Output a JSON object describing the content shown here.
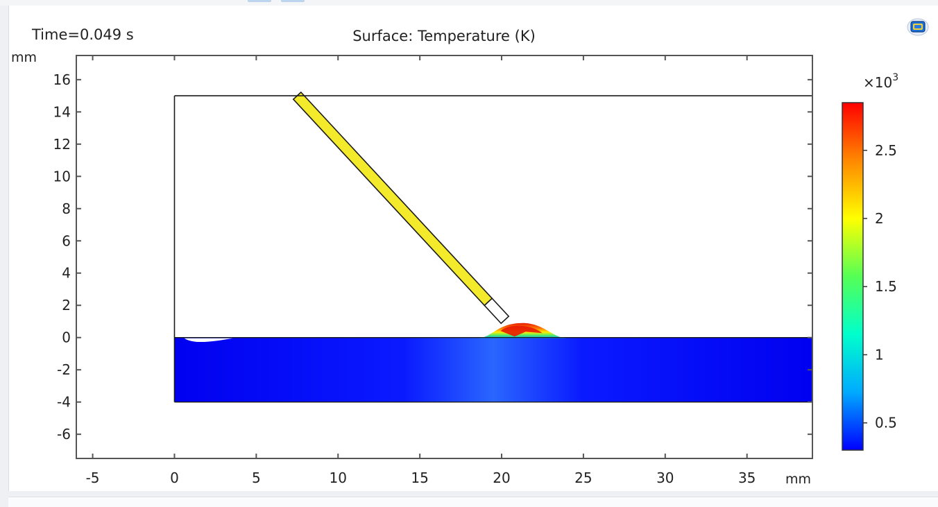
{
  "chart_data": {
    "type": "heatmap",
    "title": "Surface: Temperature (K)",
    "time_label": "Time=0.049 s",
    "x_unit": "mm",
    "y_unit": "mm",
    "xlim": [
      -6,
      39
    ],
    "ylim": [
      -7.5,
      17.5
    ],
    "x_ticks": [
      -5,
      0,
      5,
      10,
      15,
      20,
      25,
      30,
      35
    ],
    "y_ticks": [
      16,
      14,
      12,
      10,
      8,
      6,
      4,
      2,
      0,
      -2,
      -4,
      -6
    ],
    "domain": {
      "x_min": 0,
      "x_max": 39,
      "y_min": -4,
      "y_max": 15
    },
    "substrate": {
      "y_top": 0,
      "y_bottom": -4,
      "value": 350,
      "hot_spot_x": 20.5,
      "hot_spot_value": 800
    },
    "wire": {
      "from": [
        7.5,
        15
      ],
      "to": [
        20.2,
        1.1
      ],
      "value": 2000
    },
    "melt_pool": {
      "x_start": 18.5,
      "x_end": 24.0,
      "peak_x": 21.3,
      "peak_height": 0.9,
      "max_value": 2800
    },
    "colorbar": {
      "multiplier_label": "×10",
      "multiplier_exponent": "3",
      "ticks": [
        0.5,
        1,
        1.5,
        2,
        2.5
      ],
      "range": [
        0.3,
        2.85
      ],
      "colors": [
        "#0000ff",
        "#00aaff",
        "#00ffcc",
        "#55ff55",
        "#ffff00",
        "#ff8800",
        "#ff0000"
      ]
    }
  }
}
